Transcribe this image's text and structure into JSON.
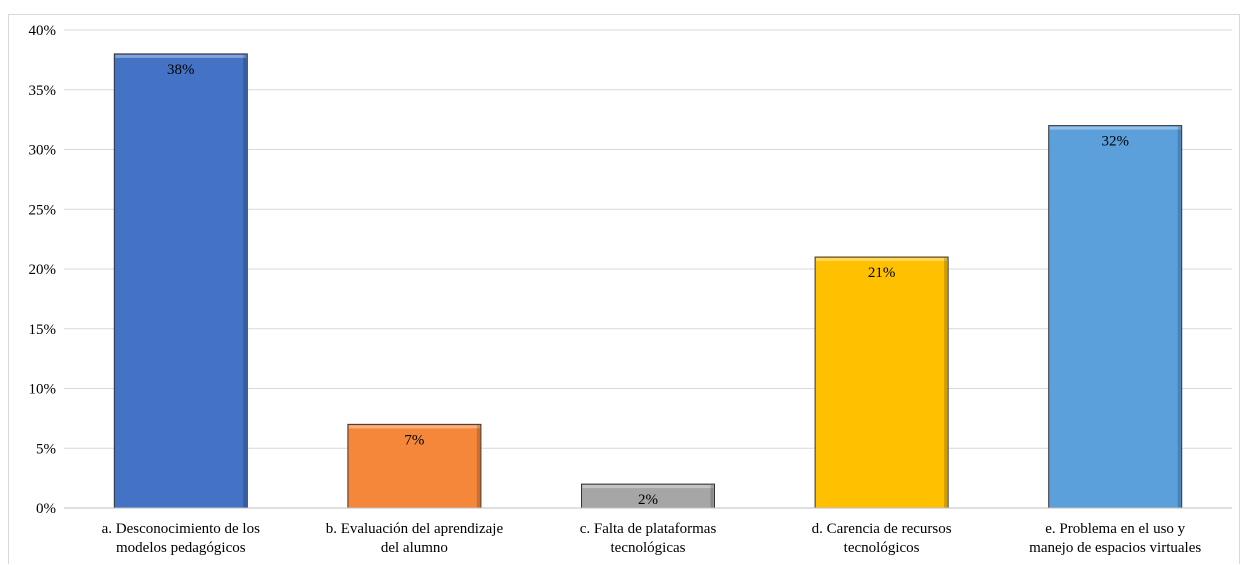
{
  "chart_data": {
    "type": "bar",
    "title": "",
    "xlabel": "",
    "ylabel": "",
    "ylim": [
      0,
      40
    ],
    "y_ticks": [
      "0%",
      "5%",
      "10%",
      "15%",
      "20%",
      "25%",
      "30%",
      "35%",
      "40%"
    ],
    "y_tick_values": [
      0,
      5,
      10,
      15,
      20,
      25,
      30,
      35,
      40
    ],
    "grid": true,
    "legend": "none",
    "categories": [
      [
        "a. Desconocimiento de los",
        "modelos pedagógicos"
      ],
      [
        "b. Evaluación del aprendizaje",
        "del alumno"
      ],
      [
        "c. Falta de plataformas",
        "tecnológicas"
      ],
      [
        "d. Carencia de recursos",
        "tecnológicos"
      ],
      [
        "e. Problema en el uso y",
        "manejo de espacios virtuales"
      ]
    ],
    "values": [
      38,
      7,
      2,
      21,
      32
    ],
    "data_labels": [
      "38%",
      "7%",
      "2%",
      "21%",
      "32%"
    ],
    "colors": [
      "#4472c4",
      "#f4873a",
      "#a6a6a6",
      "#ffc000",
      "#5b9fdb"
    ]
  }
}
